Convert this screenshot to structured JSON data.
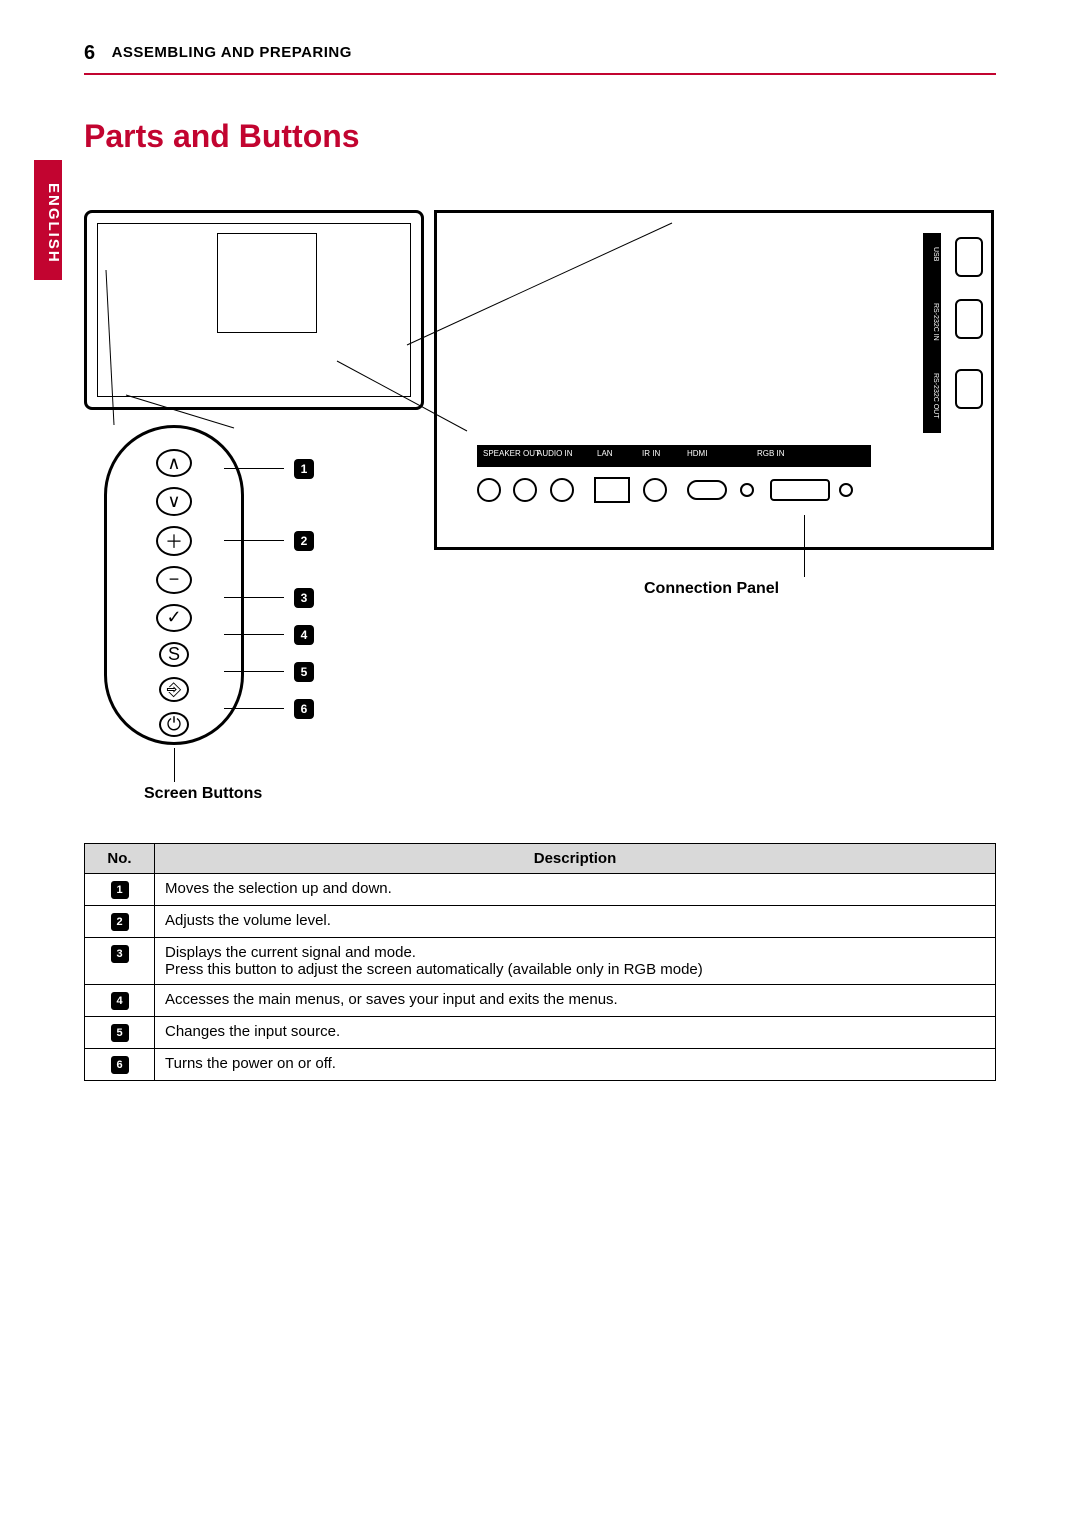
{
  "page_number": "6",
  "section_name": "ASSEMBLING AND PREPARING",
  "title": "Parts and Buttons",
  "language_tab": "ENGLISH",
  "diagram": {
    "screen_buttons_label": "Screen Buttons",
    "connection_panel_label": "Connection Panel",
    "button_symbols": [
      "∧",
      "∨",
      "＋",
      "−",
      "✓",
      "S",
      "⎆",
      "⏻"
    ],
    "callouts": [
      "1",
      "2",
      "3",
      "4",
      "5",
      "6"
    ],
    "ports_top_strip": {
      "labels": [
        "SPEAKER OUT",
        "AUDIO IN",
        "LAN",
        "IR IN",
        "HDMI",
        "RGB IN"
      ]
    },
    "side_labels": [
      "USB",
      "RS-232C IN",
      "RS-232C OUT"
    ]
  },
  "table": {
    "headers": [
      "No.",
      "Description"
    ],
    "rows": [
      {
        "no": "1",
        "desc": "Moves the selection up and down."
      },
      {
        "no": "2",
        "desc": "Adjusts the volume level."
      },
      {
        "no": "3",
        "desc": "Displays the current signal and mode.\nPress this button to adjust the screen automatically (available only in RGB mode)"
      },
      {
        "no": "4",
        "desc": "Accesses the main menus, or saves your input and exits the menus."
      },
      {
        "no": "5",
        "desc": "Changes the input source."
      },
      {
        "no": "6",
        "desc": "Turns the power on or off."
      }
    ]
  },
  "colors": {
    "accent": "#c20430",
    "header_bg": "#d9d9d9"
  }
}
